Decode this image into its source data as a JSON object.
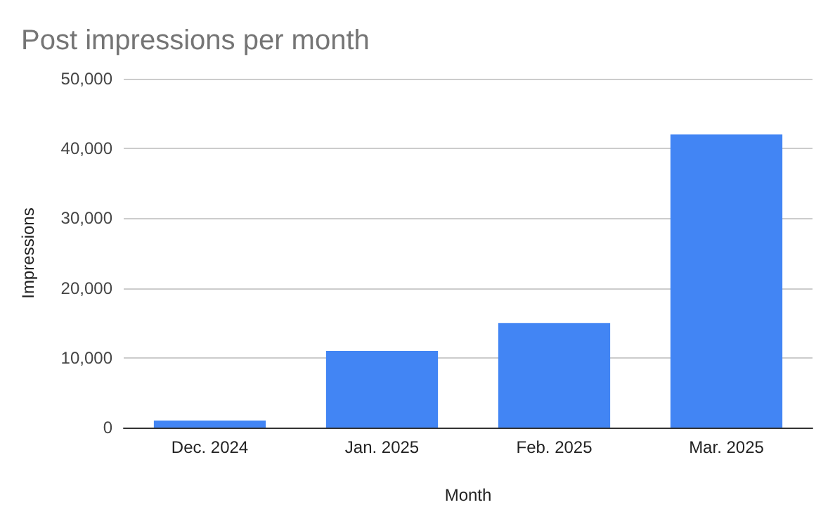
{
  "chart_data": {
    "type": "bar",
    "title": "Post impressions per month",
    "xlabel": "Month",
    "ylabel": "Impressions",
    "categories": [
      "Dec. 2024",
      "Jan. 2025",
      "Feb. 2025",
      "Mar. 2025"
    ],
    "values": [
      1000,
      11000,
      15000,
      42000
    ],
    "color": "#4285f4",
    "ylim": [
      0,
      50000
    ],
    "yticks": [
      0,
      {
        "value": 10000,
        "label": "10,000"
      },
      {
        "value": 20000,
        "label": "20,000"
      },
      {
        "value": 30000,
        "label": "30,000"
      },
      {
        "value": 40000,
        "label": "40,000"
      },
      {
        "value": 50000,
        "label": "50,000"
      }
    ],
    "grid": "y"
  }
}
